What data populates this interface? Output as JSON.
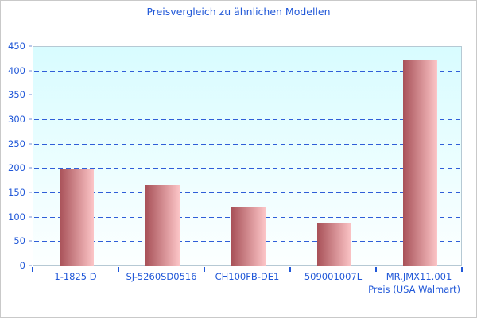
{
  "window": {
    "background": "#ffffff",
    "border_color": "#c9c9c9"
  },
  "chart_data": {
    "type": "bar",
    "title": "Preisvergleich zu ähnlichen Modellen",
    "categories": [
      "1-1825 D",
      "SJ-5260SD0516",
      "CH100FB-DE1",
      "509001007L",
      "MR.JMX11.001"
    ],
    "values": [
      198,
      165,
      120,
      88,
      420
    ],
    "xlabel": "Preis (USA Walmart)",
    "ylabel": "",
    "ylim": [
      0,
      450
    ],
    "ytick_step": 50,
    "yticks": [
      0,
      50,
      100,
      150,
      200,
      250,
      300,
      350,
      400,
      450
    ],
    "grid": true,
    "gridline_style": "dashed",
    "legend_position": "none",
    "colors": {
      "title_text": "#2158d8",
      "axis_text": "#2158d8",
      "gridline": "#2f5ed8",
      "plot_border": "#b6c9d4",
      "plot_bg_top": "#d8fcff",
      "plot_bg_bottom": "#fcffff",
      "bar_gradient_left": "#a85158",
      "bar_gradient_right": "#fcc5c7",
      "y_minor_tick": "#b9c8ea"
    }
  }
}
